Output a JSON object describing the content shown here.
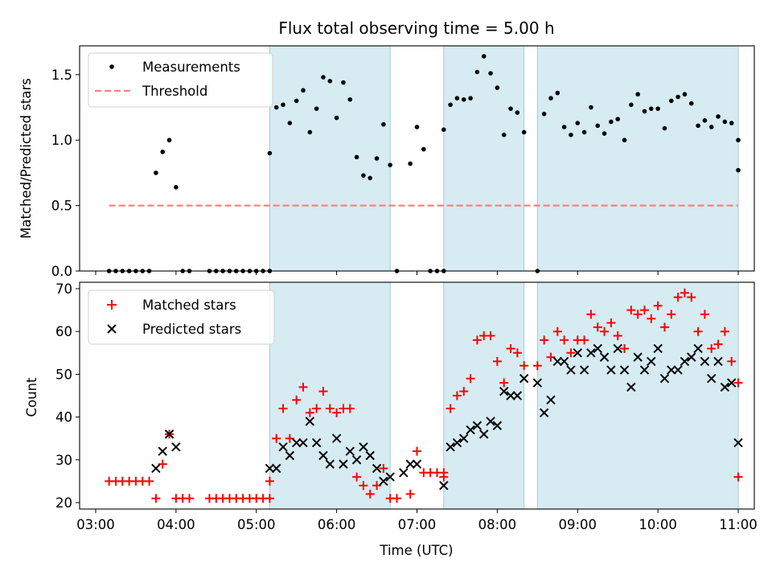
{
  "chart_data": [
    {
      "type": "scatter",
      "title": "Flux total observing time = 5.00 h",
      "xlabel": "",
      "ylabel": "Matched/Predicted stars",
      "ylim": [
        0,
        1.72
      ],
      "yticks": [
        "0.0",
        "0.5",
        "1.0",
        "1.5"
      ],
      "legend_position": "top-left",
      "legend": [
        "Measurements",
        "Threshold"
      ],
      "threshold": {
        "name": "Threshold",
        "value": 0.5,
        "x_start": "03:10",
        "x_end": "11:00",
        "color": "#ff7f7f"
      },
      "shaded_intervals": [
        [
          "05:10",
          "06:40"
        ],
        [
          "07:20",
          "08:20"
        ],
        [
          "08:30",
          "11:00"
        ]
      ],
      "series": [
        {
          "name": "Measurements",
          "color": "#000000",
          "points": [
            [
              "03:10",
              0
            ],
            [
              "03:15",
              0
            ],
            [
              "03:20",
              0
            ],
            [
              "03:25",
              0
            ],
            [
              "03:30",
              0
            ],
            [
              "03:35",
              0
            ],
            [
              "03:40",
              0
            ],
            [
              "03:45",
              0.75
            ],
            [
              "03:50",
              0.91
            ],
            [
              "03:55",
              1.0
            ],
            [
              "04:00",
              0.64
            ],
            [
              "04:05",
              0
            ],
            [
              "04:10",
              0
            ],
            [
              "04:25",
              0
            ],
            [
              "04:30",
              0
            ],
            [
              "04:35",
              0
            ],
            [
              "04:40",
              0
            ],
            [
              "04:45",
              0
            ],
            [
              "04:50",
              0
            ],
            [
              "04:55",
              0
            ],
            [
              "05:00",
              0
            ],
            [
              "05:05",
              0
            ],
            [
              "05:10",
              0
            ],
            [
              "05:10",
              0.9
            ],
            [
              "05:15",
              1.25
            ],
            [
              "05:20",
              1.27
            ],
            [
              "05:25",
              1.13
            ],
            [
              "05:30",
              1.3
            ],
            [
              "05:35",
              1.38
            ],
            [
              "05:40",
              1.06
            ],
            [
              "05:45",
              1.24
            ],
            [
              "05:50",
              1.48
            ],
            [
              "05:55",
              1.45
            ],
            [
              "06:00",
              1.17
            ],
            [
              "06:05",
              1.44
            ],
            [
              "06:10",
              1.31
            ],
            [
              "06:15",
              0.87
            ],
            [
              "06:20",
              0.73
            ],
            [
              "06:25",
              0.71
            ],
            [
              "06:30",
              0.86
            ],
            [
              "06:35",
              1.12
            ],
            [
              "06:40",
              0.81
            ],
            [
              "06:45",
              0
            ],
            [
              "06:55",
              0.82
            ],
            [
              "07:00",
              1.1
            ],
            [
              "07:05",
              0.93
            ],
            [
              "07:10",
              0
            ],
            [
              "07:15",
              0
            ],
            [
              "07:20",
              0
            ],
            [
              "07:20",
              1.08
            ],
            [
              "07:25",
              1.27
            ],
            [
              "07:30",
              1.32
            ],
            [
              "07:35",
              1.31
            ],
            [
              "07:40",
              1.32
            ],
            [
              "07:45",
              1.52
            ],
            [
              "07:50",
              1.64
            ],
            [
              "07:55",
              1.51
            ],
            [
              "08:00",
              1.4
            ],
            [
              "08:05",
              1.04
            ],
            [
              "08:10",
              1.24
            ],
            [
              "08:15",
              1.21
            ],
            [
              "08:20",
              1.06
            ],
            [
              "08:30",
              0
            ],
            [
              "08:35",
              1.2
            ],
            [
              "08:40",
              1.32
            ],
            [
              "08:45",
              1.36
            ],
            [
              "08:50",
              1.1
            ],
            [
              "08:55",
              1.04
            ],
            [
              "09:00",
              1.13
            ],
            [
              "09:05",
              1.06
            ],
            [
              "09:10",
              1.25
            ],
            [
              "09:15",
              1.11
            ],
            [
              "09:20",
              1.05
            ],
            [
              "09:25",
              1.14
            ],
            [
              "09:30",
              1.16
            ],
            [
              "09:35",
              1.0
            ],
            [
              "09:40",
              1.27
            ],
            [
              "09:45",
              1.35
            ],
            [
              "09:50",
              1.22
            ],
            [
              "09:55",
              1.24
            ],
            [
              "10:00",
              1.24
            ],
            [
              "10:05",
              1.09
            ],
            [
              "10:10",
              1.3
            ],
            [
              "10:15",
              1.33
            ],
            [
              "10:20",
              1.35
            ],
            [
              "10:25",
              1.28
            ],
            [
              "10:30",
              1.11
            ],
            [
              "10:35",
              1.15
            ],
            [
              "10:40",
              1.1
            ],
            [
              "10:45",
              1.18
            ],
            [
              "10:50",
              1.14
            ],
            [
              "10:55",
              1.13
            ],
            [
              "11:00",
              1.0
            ],
            [
              "11:00",
              0.77
            ]
          ]
        }
      ]
    },
    {
      "type": "scatter",
      "title": "",
      "xlabel": "Time (UTC)",
      "ylabel": "Count",
      "ylim": [
        18.5,
        71.5
      ],
      "yticks": [
        "20",
        "30",
        "40",
        "50",
        "60",
        "70"
      ],
      "xticks": [
        "03:00",
        "04:00",
        "05:00",
        "06:00",
        "07:00",
        "08:00",
        "09:00",
        "10:00",
        "11:00"
      ],
      "legend_position": "top-left",
      "legend": [
        "Matched stars",
        "Predicted stars"
      ],
      "shaded_intervals": [
        [
          "05:10",
          "06:40"
        ],
        [
          "07:20",
          "08:20"
        ],
        [
          "08:30",
          "11:00"
        ]
      ],
      "series": [
        {
          "name": "Matched stars",
          "marker": "plus",
          "color": "#ff0000",
          "points": [
            [
              "03:10",
              25
            ],
            [
              "03:15",
              25
            ],
            [
              "03:20",
              25
            ],
            [
              "03:25",
              25
            ],
            [
              "03:30",
              25
            ],
            [
              "03:35",
              25
            ],
            [
              "03:40",
              25
            ],
            [
              "03:45",
              21
            ],
            [
              "03:50",
              29
            ],
            [
              "03:55",
              36
            ],
            [
              "04:00",
              21
            ],
            [
              "04:05",
              21
            ],
            [
              "04:10",
              21
            ],
            [
              "04:25",
              21
            ],
            [
              "04:30",
              21
            ],
            [
              "04:35",
              21
            ],
            [
              "04:40",
              21
            ],
            [
              "04:45",
              21
            ],
            [
              "04:50",
              21
            ],
            [
              "04:55",
              21
            ],
            [
              "05:00",
              21
            ],
            [
              "05:05",
              21
            ],
            [
              "05:10",
              21
            ],
            [
              "05:10",
              25
            ],
            [
              "05:15",
              35
            ],
            [
              "05:20",
              42
            ],
            [
              "05:25",
              35
            ],
            [
              "05:30",
              44
            ],
            [
              "05:35",
              47
            ],
            [
              "05:40",
              41
            ],
            [
              "05:45",
              42
            ],
            [
              "05:50",
              46
            ],
            [
              "05:55",
              42
            ],
            [
              "06:00",
              41
            ],
            [
              "06:05",
              42
            ],
            [
              "06:10",
              42
            ],
            [
              "06:15",
              26
            ],
            [
              "06:20",
              24
            ],
            [
              "06:25",
              22
            ],
            [
              "06:30",
              24
            ],
            [
              "06:35",
              28
            ],
            [
              "06:40",
              21
            ],
            [
              "06:45",
              21
            ],
            [
              "06:55",
              22
            ],
            [
              "07:00",
              32
            ],
            [
              "07:05",
              27
            ],
            [
              "07:10",
              27
            ],
            [
              "07:15",
              27
            ],
            [
              "07:20",
              27
            ],
            [
              "07:20",
              26
            ],
            [
              "07:25",
              42
            ],
            [
              "07:30",
              45
            ],
            [
              "07:35",
              46
            ],
            [
              "07:40",
              49
            ],
            [
              "07:45",
              58
            ],
            [
              "07:50",
              59
            ],
            [
              "07:55",
              59
            ],
            [
              "08:00",
              53
            ],
            [
              "08:05",
              48
            ],
            [
              "08:10",
              56
            ],
            [
              "08:15",
              55
            ],
            [
              "08:20",
              52
            ],
            [
              "08:30",
              52
            ],
            [
              "08:35",
              58
            ],
            [
              "08:40",
              54
            ],
            [
              "08:45",
              60
            ],
            [
              "08:50",
              58
            ],
            [
              "08:55",
              55
            ],
            [
              "09:00",
              58
            ],
            [
              "09:05",
              58
            ],
            [
              "09:10",
              64
            ],
            [
              "09:15",
              61
            ],
            [
              "09:20",
              60
            ],
            [
              "09:25",
              62
            ],
            [
              "09:30",
              59
            ],
            [
              "09:35",
              56
            ],
            [
              "09:40",
              65
            ],
            [
              "09:45",
              64
            ],
            [
              "09:50",
              65
            ],
            [
              "09:55",
              63
            ],
            [
              "10:00",
              66
            ],
            [
              "10:05",
              61
            ],
            [
              "10:10",
              64
            ],
            [
              "10:15",
              68
            ],
            [
              "10:20",
              69
            ],
            [
              "10:25",
              68
            ],
            [
              "10:30",
              60
            ],
            [
              "10:35",
              64
            ],
            [
              "10:40",
              56
            ],
            [
              "10:45",
              57
            ],
            [
              "10:50",
              60
            ],
            [
              "10:55",
              53
            ],
            [
              "11:00",
              48
            ],
            [
              "11:00",
              26
            ]
          ]
        },
        {
          "name": "Predicted stars",
          "marker": "x",
          "color": "#000000",
          "points": [
            [
              "03:45",
              28
            ],
            [
              "03:50",
              32
            ],
            [
              "03:55",
              36
            ],
            [
              "04:00",
              33
            ],
            [
              "05:10",
              28
            ],
            [
              "05:15",
              28
            ],
            [
              "05:20",
              33
            ],
            [
              "05:25",
              31
            ],
            [
              "05:30",
              34
            ],
            [
              "05:35",
              34
            ],
            [
              "05:40",
              39
            ],
            [
              "05:45",
              34
            ],
            [
              "05:50",
              31
            ],
            [
              "05:55",
              29
            ],
            [
              "06:00",
              35
            ],
            [
              "06:05",
              29
            ],
            [
              "06:10",
              32
            ],
            [
              "06:15",
              30
            ],
            [
              "06:20",
              33
            ],
            [
              "06:25",
              31
            ],
            [
              "06:30",
              28
            ],
            [
              "06:35",
              25
            ],
            [
              "06:40",
              26
            ],
            [
              "06:50",
              27
            ],
            [
              "06:55",
              29
            ],
            [
              "07:00",
              29
            ],
            [
              "07:20",
              24
            ],
            [
              "07:25",
              33
            ],
            [
              "07:30",
              34
            ],
            [
              "07:35",
              35
            ],
            [
              "07:40",
              37
            ],
            [
              "07:45",
              38
            ],
            [
              "07:50",
              36
            ],
            [
              "07:55",
              39
            ],
            [
              "08:00",
              38
            ],
            [
              "08:05",
              46
            ],
            [
              "08:10",
              45
            ],
            [
              "08:15",
              45
            ],
            [
              "08:20",
              49
            ],
            [
              "08:30",
              48
            ],
            [
              "08:35",
              41
            ],
            [
              "08:40",
              44
            ],
            [
              "08:45",
              53
            ],
            [
              "08:50",
              53
            ],
            [
              "08:55",
              51
            ],
            [
              "09:00",
              55
            ],
            [
              "09:05",
              51
            ],
            [
              "09:10",
              55
            ],
            [
              "09:15",
              56
            ],
            [
              "09:20",
              54
            ],
            [
              "09:25",
              51
            ],
            [
              "09:30",
              56
            ],
            [
              "09:35",
              51
            ],
            [
              "09:40",
              47
            ],
            [
              "09:45",
              54
            ],
            [
              "09:50",
              51
            ],
            [
              "09:55",
              53
            ],
            [
              "10:00",
              56
            ],
            [
              "10:05",
              49
            ],
            [
              "10:10",
              51
            ],
            [
              "10:15",
              51
            ],
            [
              "10:20",
              53
            ],
            [
              "10:25",
              54
            ],
            [
              "10:30",
              56
            ],
            [
              "10:35",
              53
            ],
            [
              "10:40",
              49
            ],
            [
              "10:45",
              53
            ],
            [
              "10:50",
              47
            ],
            [
              "10:55",
              48
            ],
            [
              "11:00",
              34
            ]
          ]
        }
      ]
    }
  ]
}
